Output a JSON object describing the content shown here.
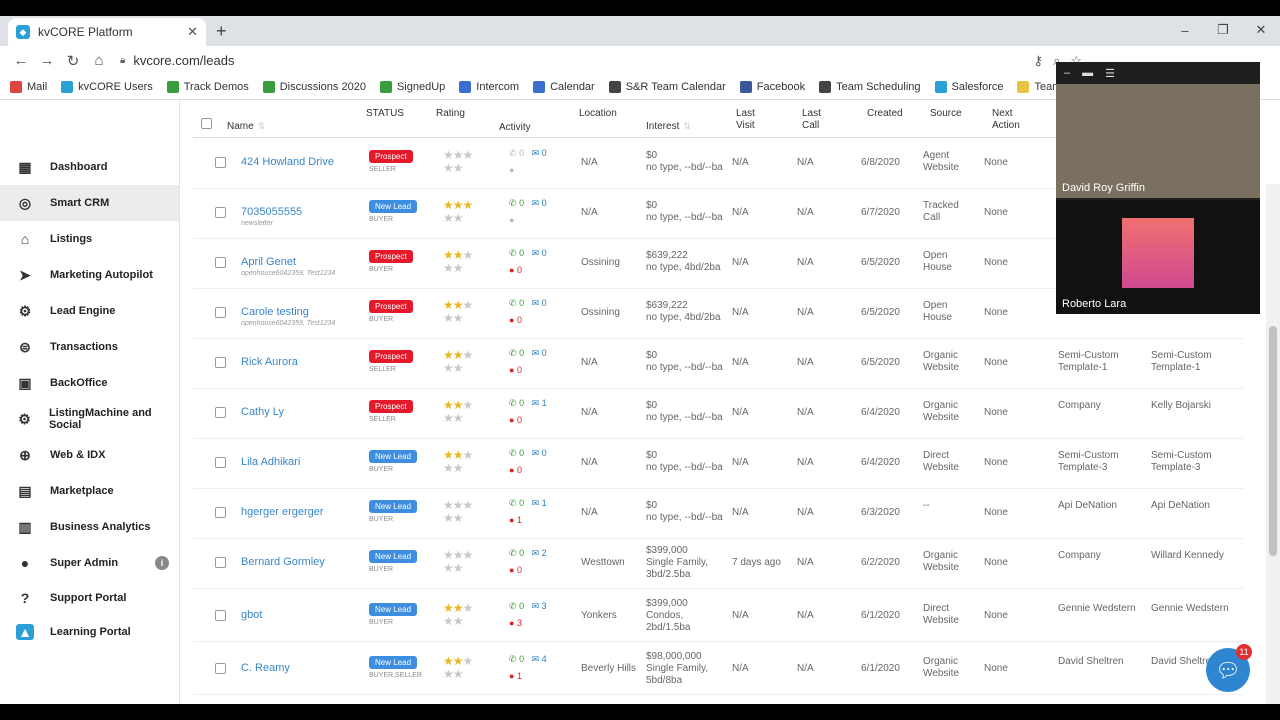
{
  "browser": {
    "tab_title": "kvCORE Platform",
    "url": "kvcore.com/leads",
    "bookmarks": [
      "Mail",
      "kvCORE Users",
      "Track Demos",
      "Discussions 2020",
      "SignedUp",
      "Intercom",
      "Calendar",
      "S&R Team Calendar",
      "Facebook",
      "Team Scheduling",
      "Salesforce",
      "Team Rosters"
    ]
  },
  "sidebar": {
    "items": [
      {
        "label": "Dashboard",
        "icon": "dashboard-icon"
      },
      {
        "label": "Smart CRM",
        "icon": "crm-icon"
      },
      {
        "label": "Listings",
        "icon": "home-icon"
      },
      {
        "label": "Marketing Autopilot",
        "icon": "paper-plane-icon"
      },
      {
        "label": "Lead Engine",
        "icon": "engine-icon"
      },
      {
        "label": "Transactions",
        "icon": "transactions-icon"
      },
      {
        "label": "BackOffice",
        "icon": "backoffice-icon"
      },
      {
        "label": "ListingMachine and Social",
        "icon": "listing-machine-icon"
      },
      {
        "label": "Web & IDX",
        "icon": "globe-icon"
      },
      {
        "label": "Marketplace",
        "icon": "marketplace-icon"
      },
      {
        "label": "Business Analytics",
        "icon": "analytics-icon"
      },
      {
        "label": "Super Admin",
        "icon": "admin-icon"
      },
      {
        "label": "Support Portal",
        "icon": "help-icon"
      },
      {
        "label": "Learning Portal",
        "icon": "graduation-cap-icon"
      }
    ]
  },
  "table": {
    "headers": {
      "name": "Name",
      "status": "STATUS",
      "rating": "Rating",
      "activity": "Activity",
      "location": "Location",
      "interest": "Interest",
      "last_visit_1": "Last",
      "last_visit_2": "Visit",
      "last_call_1": "Last",
      "last_call_2": "Call",
      "created": "Created",
      "source": "Source",
      "next_action_1": "Next",
      "next_action_2": "Action"
    },
    "rows": [
      {
        "name": "424 Howland Drive",
        "sub": "",
        "status": "Prospect",
        "type": "SELLER",
        "stars": 0,
        "calls": "0",
        "emails": "0",
        "texts": "",
        "location": "N/A",
        "int1": "$0",
        "int2": "no type, --bd/--ba",
        "int3": "",
        "visit": "N/A",
        "call": "N/A",
        "created": "6/8/2020",
        "src1": "Agent",
        "src2": "Website",
        "next": "None",
        "col1a": "",
        "col1b": "",
        "col2a": "",
        "col2b": ""
      },
      {
        "name": "7035055555",
        "sub": "newsletter",
        "status": "New Lead",
        "type": "BUYER",
        "stars": 3,
        "calls": "0",
        "emails": "0",
        "texts": "",
        "location": "N/A",
        "int1": "$0",
        "int2": "no type, --bd/--ba",
        "int3": "",
        "visit": "N/A",
        "call": "N/A",
        "created": "6/7/2020",
        "src1": "Tracked",
        "src2": "Call",
        "next": "None",
        "col1a": "",
        "col1b": "",
        "col2a": "",
        "col2b": ""
      },
      {
        "name": "April Genet",
        "sub": "openhouse6042359, Test1234",
        "status": "Prospect",
        "type": "BUYER",
        "stars": 2,
        "calls": "0",
        "emails": "0",
        "texts": "0",
        "location": "Ossining",
        "int1": "$639,222",
        "int2": "no type, 4bd/2ba",
        "int3": "",
        "visit": "N/A",
        "call": "N/A",
        "created": "6/5/2020",
        "src1": "Open",
        "src2": "House",
        "next": "None",
        "col1a": "",
        "col1b": "",
        "col2a": "",
        "col2b": ""
      },
      {
        "name": "Carole testing",
        "sub": "openhouse6042359, Test1234",
        "status": "Prospect",
        "type": "BUYER",
        "stars": 2,
        "calls": "0",
        "emails": "0",
        "texts": "0",
        "location": "Ossining",
        "int1": "$639,222",
        "int2": "no type, 4bd/2ba",
        "int3": "",
        "visit": "N/A",
        "call": "N/A",
        "created": "6/5/2020",
        "src1": "Open",
        "src2": "House",
        "next": "None",
        "col1a": "",
        "col1b": "",
        "col2a": "",
        "col2b": ""
      },
      {
        "name": "Rick Aurora",
        "sub": "",
        "status": "Prospect",
        "type": "SELLER",
        "stars": 2,
        "calls": "0",
        "emails": "0",
        "texts": "0",
        "location": "N/A",
        "int1": "$0",
        "int2": "no type, --bd/--ba",
        "int3": "",
        "visit": "N/A",
        "call": "N/A",
        "created": "6/5/2020",
        "src1": "Organic",
        "src2": "Website",
        "next": "None",
        "col1a": "Semi-Custom",
        "col1b": "Template-1",
        "col2a": "Semi-Custom",
        "col2b": "Template-1"
      },
      {
        "name": "Cathy Ly",
        "sub": "",
        "status": "Prospect",
        "type": "SELLER",
        "stars": 2,
        "calls": "0",
        "emails": "1",
        "texts": "0",
        "location": "N/A",
        "int1": "$0",
        "int2": "no type, --bd/--ba",
        "int3": "",
        "visit": "N/A",
        "call": "N/A",
        "created": "6/4/2020",
        "src1": "Organic",
        "src2": "Website",
        "next": "None",
        "col1a": "Company",
        "col1b": "",
        "col2a": "Kelly Bojarski",
        "col2b": ""
      },
      {
        "name": "Lila Adhikari",
        "sub": "",
        "status": "New Lead",
        "type": "BUYER",
        "stars": 2,
        "calls": "0",
        "emails": "0",
        "texts": "0",
        "location": "N/A",
        "int1": "$0",
        "int2": "no type, --bd/--ba",
        "int3": "",
        "visit": "N/A",
        "call": "N/A",
        "created": "6/4/2020",
        "src1": "Direct",
        "src2": "Website",
        "next": "None",
        "col1a": "Semi-Custom",
        "col1b": "Template-3",
        "col2a": "Semi-Custom",
        "col2b": "Template-3"
      },
      {
        "name": "hgerger ergerger",
        "sub": "",
        "status": "New Lead",
        "type": "BUYER",
        "stars": 0,
        "calls": "0",
        "emails": "1",
        "texts": "1",
        "location": "N/A",
        "int1": "$0",
        "int2": "no type, --bd/--ba",
        "int3": "",
        "visit": "N/A",
        "call": "N/A",
        "created": "6/3/2020",
        "src1": "--",
        "src2": "",
        "next": "None",
        "col1a": "Api DeNation",
        "col1b": "",
        "col2a": "Api DeNation",
        "col2b": ""
      },
      {
        "name": "Bernard Gormley",
        "sub": "",
        "status": "New Lead",
        "type": "BUYER",
        "stars": 0,
        "calls": "0",
        "emails": "2",
        "texts": "0",
        "location": "Westtown",
        "int1": "$399,000",
        "int2": "Single Family,",
        "int3": "3bd/2.5ba",
        "visit": "7 days ago",
        "call": "N/A",
        "created": "6/2/2020",
        "src1": "Organic",
        "src2": "Website",
        "next": "None",
        "col1a": "Company",
        "col1b": "",
        "col2a": "Willard Kennedy",
        "col2b": ""
      },
      {
        "name": "gbot",
        "sub": "",
        "status": "New Lead",
        "type": "BUYER",
        "stars": 2,
        "calls": "0",
        "emails": "3",
        "texts": "3",
        "location": "Yonkers",
        "int1": "$399,000",
        "int2": "Condos,",
        "int3": "2bd/1.5ba",
        "visit": "N/A",
        "call": "N/A",
        "created": "6/1/2020",
        "src1": "Direct",
        "src2": "Website",
        "next": "None",
        "col1a": "Gennie Wedstern",
        "col1b": "",
        "col2a": "Gennie Wedstern",
        "col2b": ""
      },
      {
        "name": "C. Reamy",
        "sub": "",
        "status": "New Lead",
        "type": "BUYER,SELLER",
        "stars": 2,
        "calls": "0",
        "emails": "4",
        "texts": "1",
        "location": "Beverly Hills",
        "int1": "$98,000,000",
        "int2": "Single Family,",
        "int3": "5bd/8ba",
        "visit": "N/A",
        "call": "N/A",
        "created": "6/1/2020",
        "src1": "Organic",
        "src2": "Website",
        "next": "None",
        "col1a": "David Sheltren",
        "col1b": "",
        "col2a": "David Sheltre",
        "col2b": ""
      }
    ]
  },
  "video": {
    "participant1": "David Roy Griffin",
    "participant2": "Roberto Lara"
  },
  "chat": {
    "unread": "11"
  },
  "colors": {
    "prospect": "#e5192a",
    "new_lead": "#3d8ee0",
    "star": "#c8c8c8",
    "link": "#3a86c8"
  }
}
